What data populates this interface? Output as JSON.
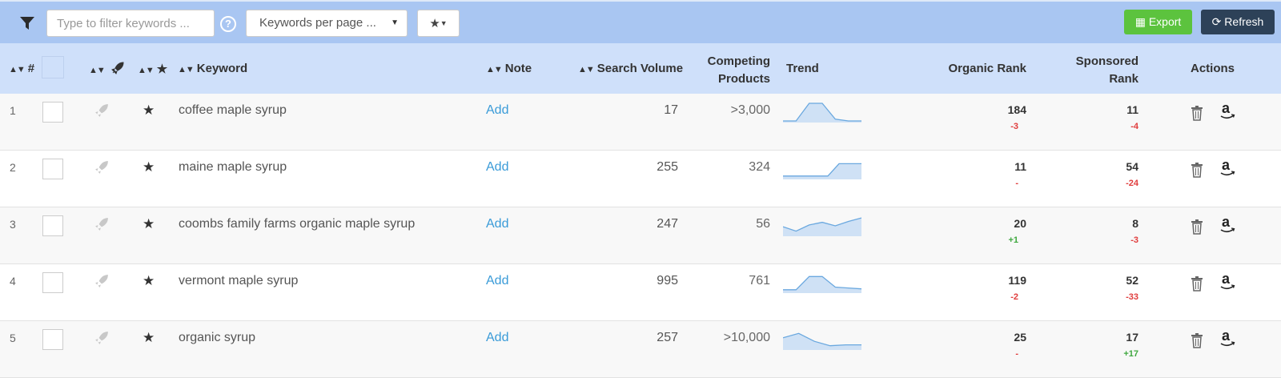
{
  "toolbar": {
    "filter_placeholder": "Type to filter keywords ...",
    "help_glyph": "?",
    "per_page_label": "Keywords per page ...",
    "export_label": "Export",
    "refresh_label": "Refresh"
  },
  "columns": {
    "num": "#",
    "keyword": "Keyword",
    "note": "Note",
    "search_volume": "Search Volume",
    "competing_1": "Competing",
    "competing_2": "Products",
    "trend": "Trend",
    "organic_rank": "Organic Rank",
    "sponsored_1": "Sponsored",
    "sponsored_2": "Rank",
    "actions": "Actions"
  },
  "rows": [
    {
      "num": "1",
      "keyword": "coffee maple syrup",
      "note": "Add",
      "search_volume": "17",
      "competing": ">3,000",
      "organic_rank": "184",
      "organic_delta": "-3",
      "organic_delta_sign": "neg",
      "sponsored_rank": "11",
      "sponsored_delta": "-4",
      "sponsored_delta_sign": "neg",
      "trend": [
        0,
        0,
        1,
        1,
        0.1,
        0,
        0
      ]
    },
    {
      "num": "2",
      "keyword": "maine maple syrup",
      "note": "Add",
      "search_volume": "255",
      "competing": "324",
      "organic_rank": "11",
      "organic_delta": "-",
      "organic_delta_sign": "neg",
      "sponsored_rank": "54",
      "sponsored_delta": "-24",
      "sponsored_delta_sign": "neg",
      "trend": [
        0.1,
        0.1,
        0.1,
        0.1,
        0.1,
        0.8,
        0.8,
        0.8
      ]
    },
    {
      "num": "3",
      "keyword": "coombs family farms organic maple syrup",
      "note": "Add",
      "search_volume": "247",
      "competing": "56",
      "organic_rank": "20",
      "organic_delta": "+1",
      "organic_delta_sign": "pos",
      "sponsored_rank": "8",
      "sponsored_delta": "-3",
      "sponsored_delta_sign": "neg",
      "trend": [
        0.45,
        0.2,
        0.55,
        0.7,
        0.5,
        0.75,
        0.95
      ]
    },
    {
      "num": "4",
      "keyword": "vermont maple syrup",
      "note": "Add",
      "search_volume": "995",
      "competing": "761",
      "organic_rank": "119",
      "organic_delta": "-2",
      "organic_delta_sign": "neg",
      "sponsored_rank": "52",
      "sponsored_delta": "-33",
      "sponsored_delta_sign": "neg",
      "trend": [
        0.1,
        0.1,
        0.85,
        0.85,
        0.25,
        0.2,
        0.15
      ]
    },
    {
      "num": "5",
      "keyword": "organic syrup",
      "note": "Add",
      "search_volume": "257",
      "competing": ">10,000",
      "organic_rank": "25",
      "organic_delta": "-",
      "organic_delta_sign": "neg",
      "sponsored_rank": "17",
      "sponsored_delta": "+17",
      "sponsored_delta_sign": "pos",
      "trend": [
        0.6,
        0.85,
        0.4,
        0.15,
        0.2,
        0.2
      ]
    }
  ],
  "colors": {
    "toolbar_bg": "#a9c6f2",
    "header_bg": "#cfe0fa",
    "export": "#5cc33e",
    "refresh": "#2d4158",
    "link": "#3a9bd8",
    "negative": "#e03d3d",
    "positive": "#3fa83f",
    "sparkline_line": "#6aa8df",
    "sparkline_fill": "#cfe1f5"
  },
  "icons": [
    "filter-icon",
    "help-icon",
    "star-icon",
    "table-icon",
    "refresh-icon",
    "sort-icon",
    "rocket-icon",
    "checkbox",
    "trash-icon",
    "amazon-icon"
  ]
}
